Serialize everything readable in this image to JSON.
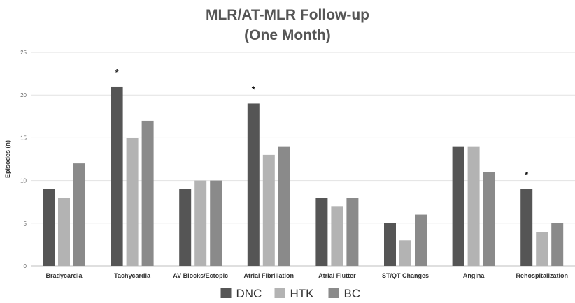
{
  "chart_data": {
    "type": "bar",
    "title_lines": [
      "MLR/AT-MLR Follow-up",
      "(One Month)"
    ],
    "ylabel": "Episodes (n)",
    "xlabel": "",
    "ylim": [
      0,
      25
    ],
    "yticks": [
      "0",
      "5",
      "10",
      "15",
      "20",
      "25"
    ],
    "grid": true,
    "legend_position": "bottom-center",
    "categories": [
      "Bradycardia",
      "Tachycardia",
      "AV Blocks/Ectopic",
      "Atrial Fibrillation",
      "Atrial Flutter",
      "ST/QT Changes",
      "Angina",
      "Rehospitalization"
    ],
    "series": [
      {
        "name": "DNC",
        "color": "#555555",
        "values": [
          9,
          21,
          9,
          19,
          8,
          5,
          14,
          9
        ]
      },
      {
        "name": "HTK",
        "color": "#b3b3b3",
        "values": [
          8,
          15,
          10,
          13,
          7,
          3,
          14,
          4
        ]
      },
      {
        "name": "BC",
        "color": "#8a8a8a",
        "values": [
          12,
          17,
          10,
          14,
          8,
          6,
          11,
          5
        ]
      }
    ],
    "annotations": [
      {
        "text": "*",
        "category": "Tachycardia",
        "series": "DNC"
      },
      {
        "text": "*",
        "category": "Atrial Fibrillation",
        "series": "DNC"
      },
      {
        "text": "*",
        "category": "Rehospitalization",
        "series": "DNC"
      }
    ]
  }
}
